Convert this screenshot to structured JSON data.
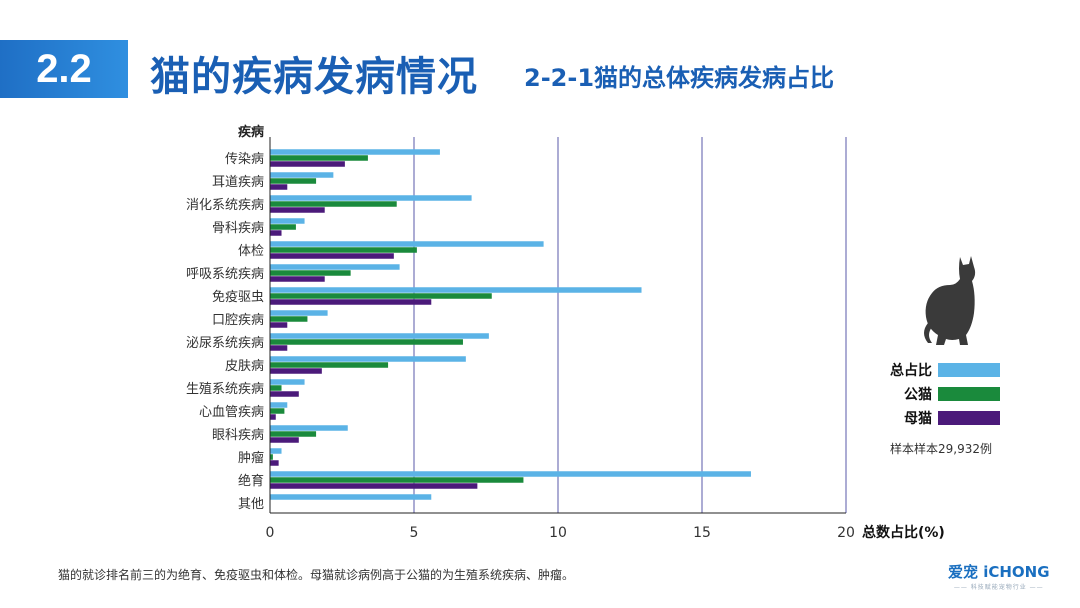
{
  "header": {
    "section_number": "2.2",
    "title": "猫的疾病发病情况",
    "subtitle": "2-2-1猫的总体疾病发病占比"
  },
  "colors": {
    "total": "#5bb3e6",
    "male": "#1a8a3c",
    "female": "#4b1a7a",
    "grid": "#5a5aa8",
    "brand": "#1a6fc0"
  },
  "chart_data": {
    "type": "bar",
    "orientation": "horizontal",
    "category_header": "疾病",
    "categories": [
      "传染病",
      "耳道疾病",
      "消化系统疾病",
      "骨科疾病",
      "体检",
      "呼吸系统疾病",
      "免疫驱虫",
      "口腔疾病",
      "泌尿系统疾病",
      "皮肤病",
      "生殖系统疾病",
      "心血管疾病",
      "眼科疾病",
      "肿瘤",
      "绝育",
      "其他"
    ],
    "series": [
      {
        "name": "总占比",
        "color": "#5bb3e6",
        "values": [
          5.9,
          2.2,
          7.0,
          1.2,
          9.5,
          4.5,
          12.9,
          2.0,
          7.6,
          6.8,
          1.2,
          0.6,
          2.7,
          0.4,
          16.7,
          5.6
        ]
      },
      {
        "name": "公猫",
        "color": "#1a8a3c",
        "values": [
          3.4,
          1.6,
          4.4,
          0.9,
          5.1,
          2.8,
          7.7,
          1.3,
          6.7,
          4.1,
          0.4,
          0.5,
          1.6,
          0.1,
          8.8,
          0
        ]
      },
      {
        "name": "母猫",
        "color": "#4b1a7a",
        "values": [
          2.6,
          0.6,
          1.9,
          0.4,
          4.3,
          1.9,
          5.6,
          0.6,
          0.6,
          1.8,
          1.0,
          0.2,
          1.0,
          0.3,
          7.2,
          0
        ]
      }
    ],
    "xlim": [
      0,
      20
    ],
    "xticks": [
      0,
      5,
      10,
      15,
      20
    ],
    "xlabel": "总数占比(%)",
    "grid": "vertical"
  },
  "legend": {
    "items": [
      {
        "label": "总占比",
        "color": "#5bb3e6"
      },
      {
        "label": "公猫",
        "color": "#1a8a3c"
      },
      {
        "label": "母猫",
        "color": "#4b1a7a"
      }
    ]
  },
  "sample_note": "样本样本29,932例",
  "footnote": "猫的就诊排名前三的为绝育、免疫驱虫和体检。母猫就诊病例高于公猫的为生殖系统疾病、肿瘤。",
  "brand": {
    "name": "爱宠 iCHONG",
    "tagline": "—— 科技赋能宠物行业 ——"
  },
  "icons": {
    "cat": "cat-silhouette-icon"
  }
}
